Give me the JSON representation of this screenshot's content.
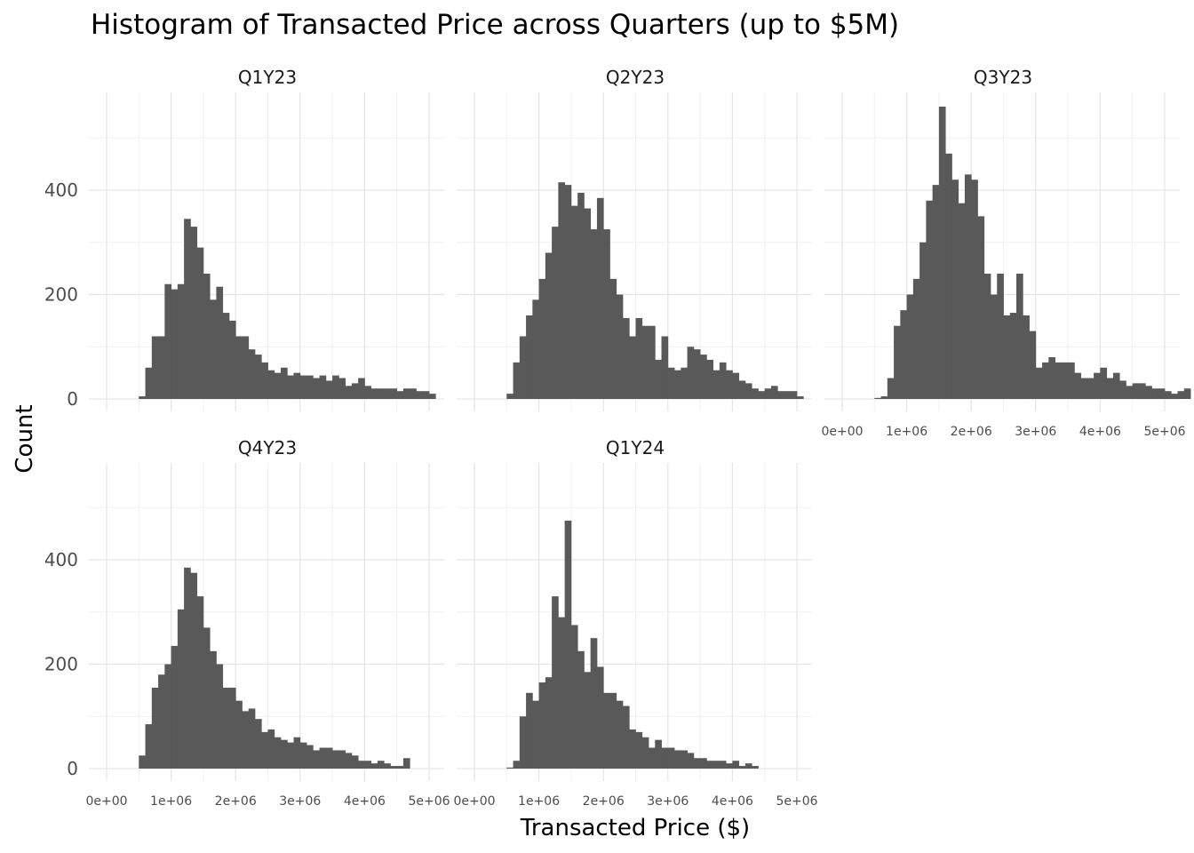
{
  "chart_data": {
    "type": "bar",
    "title": "Histogram of Transacted Price across Quarters (up to $5M)",
    "xlabel": "Transacted Price ($)",
    "ylabel": "Count",
    "xlim": [
      0,
      5000000
    ],
    "ylim": [
      0,
      550
    ],
    "x_ticks": [
      "0e+00",
      "1e+06",
      "2e+06",
      "3e+06",
      "4e+06",
      "5e+06"
    ],
    "y_ticks": [
      "0",
      "200",
      "400"
    ],
    "bin_width": 100000,
    "bin_start": 500000,
    "grid": true,
    "bar_color": "#595959",
    "series": [
      {
        "name": "Q1Y23",
        "values": [
          5,
          60,
          120,
          120,
          220,
          210,
          220,
          345,
          330,
          290,
          240,
          190,
          215,
          165,
          150,
          120,
          120,
          95,
          85,
          70,
          55,
          50,
          60,
          45,
          50,
          45,
          45,
          40,
          45,
          35,
          45,
          40,
          25,
          30,
          40,
          25,
          20,
          20,
          20,
          20,
          15,
          20,
          20,
          15,
          15,
          10
        ]
      },
      {
        "name": "Q2Y23",
        "values": [
          10,
          70,
          120,
          160,
          190,
          230,
          280,
          330,
          415,
          410,
          370,
          395,
          365,
          325,
          385,
          325,
          230,
          200,
          155,
          120,
          155,
          140,
          140,
          75,
          120,
          60,
          55,
          60,
          100,
          95,
          85,
          75,
          55,
          70,
          55,
          50,
          35,
          30,
          20,
          15,
          20,
          25,
          15,
          15,
          15,
          5
        ]
      },
      {
        "name": "Q3Y23",
        "values": [
          2,
          5,
          40,
          140,
          170,
          200,
          230,
          300,
          380,
          410,
          560,
          470,
          420,
          375,
          430,
          420,
          350,
          240,
          200,
          240,
          160,
          165,
          240,
          160,
          130,
          60,
          70,
          80,
          70,
          70,
          70,
          50,
          40,
          40,
          50,
          60,
          40,
          50,
          35,
          25,
          30,
          30,
          25,
          20,
          20,
          15,
          10,
          15,
          20
        ]
      },
      {
        "name": "Q4Y23",
        "values": [
          25,
          85,
          155,
          180,
          200,
          235,
          305,
          385,
          375,
          330,
          270,
          225,
          200,
          155,
          155,
          130,
          110,
          115,
          95,
          70,
          75,
          60,
          55,
          50,
          60,
          50,
          45,
          35,
          40,
          40,
          35,
          35,
          30,
          25,
          15,
          15,
          10,
          15,
          10,
          5,
          5,
          20
        ]
      },
      {
        "name": "Q1Y24",
        "values": [
          2,
          15,
          100,
          145,
          130,
          165,
          175,
          330,
          290,
          475,
          275,
          225,
          185,
          250,
          195,
          145,
          145,
          130,
          120,
          75,
          70,
          60,
          40,
          55,
          40,
          40,
          35,
          35,
          30,
          20,
          20,
          15,
          15,
          15,
          10,
          15,
          5,
          10,
          5
        ]
      }
    ]
  }
}
